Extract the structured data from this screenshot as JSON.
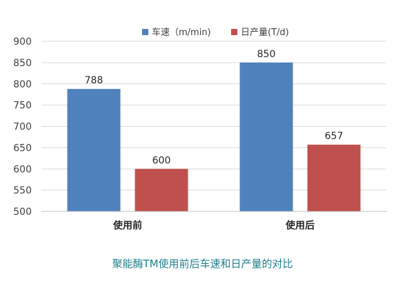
{
  "chart_data": {
    "type": "bar",
    "categories": [
      "使用前",
      "使用后"
    ],
    "series": [
      {
        "name": "车速（m/min)",
        "values": [
          788,
          850
        ],
        "color": "#4f81bd"
      },
      {
        "name": "日产量(T/d)",
        "values": [
          600,
          657
        ],
        "color": "#c0504d"
      }
    ],
    "ylim": [
      500,
      900
    ],
    "yticks": [
      500,
      550,
      600,
      650,
      700,
      750,
      800,
      850,
      900
    ],
    "grid": true,
    "legend": "top-center",
    "data_labels": true
  },
  "caption": "聚能酶TM使用前后车速和日产量的对比"
}
